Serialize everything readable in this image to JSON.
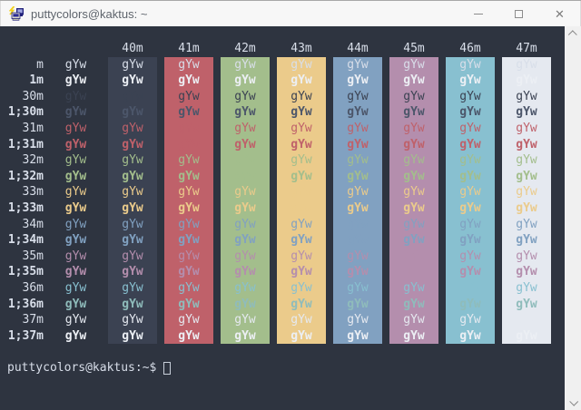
{
  "window": {
    "title": "puttycolors@kaktus: ~",
    "controls": {
      "minimize": "minimize",
      "maximize": "maximize",
      "close": "✕"
    }
  },
  "terminal": {
    "background": "#2e3440",
    "foreground": "#d8dee9",
    "cell_text": "gYw",
    "columns": [
      {
        "label": "40m",
        "bg": "#3b4252"
      },
      {
        "label": "41m",
        "bg": "#bf616a"
      },
      {
        "label": "42m",
        "bg": "#a3be8c"
      },
      {
        "label": "43m",
        "bg": "#ebcb8b"
      },
      {
        "label": "44m",
        "bg": "#81a1c1"
      },
      {
        "label": "45m",
        "bg": "#b48ead"
      },
      {
        "label": "46m",
        "bg": "#88c0d0"
      },
      {
        "label": "47m",
        "bg": "#e5e9f0"
      }
    ],
    "rows": [
      {
        "label": "m",
        "fg": "#d8dee9",
        "bold": false
      },
      {
        "label": "1m",
        "fg": "#eceff4",
        "bold": true
      },
      {
        "label": "30m",
        "fg": "#3b4252",
        "bold": false
      },
      {
        "label": "1;30m",
        "fg": "#4c566a",
        "bold": true
      },
      {
        "label": "31m",
        "fg": "#bf616a",
        "bold": false
      },
      {
        "label": "1;31m",
        "fg": "#bf616a",
        "bold": true
      },
      {
        "label": "32m",
        "fg": "#a3be8c",
        "bold": false
      },
      {
        "label": "1;32m",
        "fg": "#a3be8c",
        "bold": true
      },
      {
        "label": "33m",
        "fg": "#ebcb8b",
        "bold": false
      },
      {
        "label": "1;33m",
        "fg": "#ebcb8b",
        "bold": true
      },
      {
        "label": "34m",
        "fg": "#81a1c1",
        "bold": false
      },
      {
        "label": "1;34m",
        "fg": "#81a1c1",
        "bold": true
      },
      {
        "label": "35m",
        "fg": "#b48ead",
        "bold": false
      },
      {
        "label": "1;35m",
        "fg": "#b48ead",
        "bold": true
      },
      {
        "label": "36m",
        "fg": "#88c0d0",
        "bold": false
      },
      {
        "label": "1;36m",
        "fg": "#8fbcbb",
        "bold": true
      },
      {
        "label": "37m",
        "fg": "#e5e9f0",
        "bold": false
      },
      {
        "label": "1;37m",
        "fg": "#eceff4",
        "bold": true
      }
    ],
    "prompt": "puttycolors@kaktus:~$"
  }
}
